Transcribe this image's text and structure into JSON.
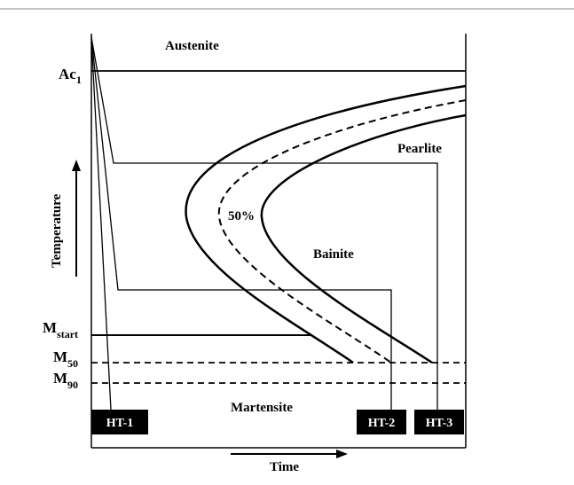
{
  "diagram": {
    "phases": {
      "austenite": "Austenite",
      "pearlite": "Pearlite",
      "bainite": "Bainite",
      "martensite": "Martensite",
      "fifty_percent": "50%"
    },
    "temperature_levels": {
      "ac1": {
        "main": "Ac",
        "sub": "1"
      },
      "mstart": {
        "main": "M",
        "sub": "start"
      },
      "m50": {
        "main": "M",
        "sub": "50"
      },
      "m90": {
        "main": "M",
        "sub": "90"
      }
    },
    "axes": {
      "y_label": "Temperature",
      "x_label": "Time"
    },
    "treatments": [
      {
        "label": "HT-1"
      },
      {
        "label": "HT-2"
      },
      {
        "label": "HT-3"
      }
    ],
    "colors": {
      "line": "#000000",
      "box_fill": "#000000",
      "box_text": "#ffffff",
      "background": "#ffffff"
    }
  }
}
